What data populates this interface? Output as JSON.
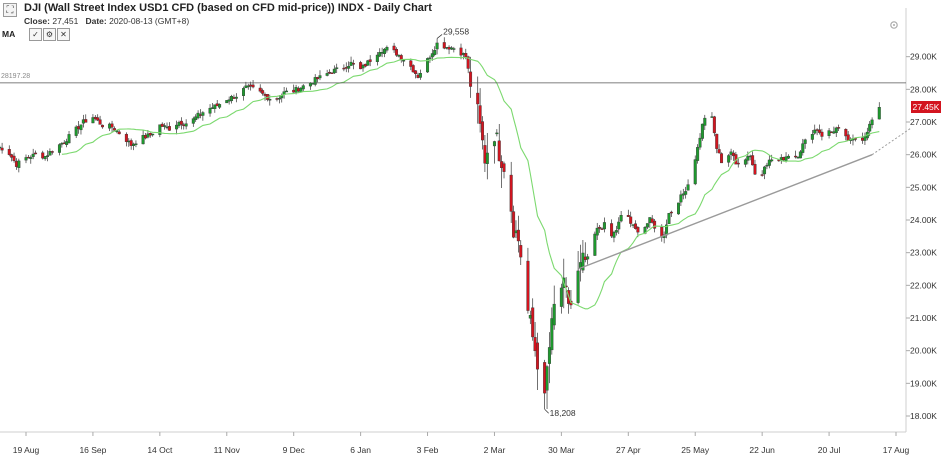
{
  "header": {
    "title": "DJI (Wall Street Index USD1 CFD (based on CFD mid-price)) INDX - Daily Chart",
    "close_label": "Close:",
    "close_value": "27,451",
    "date_label": "Date:",
    "date_value": "2020-08-13 (GMT+8)",
    "ma_label": "MA",
    "ma_buttons": [
      "✓",
      "⚙",
      "✕"
    ]
  },
  "colors": {
    "up": "#1e9a2e",
    "down": "#d3141f",
    "ma_line": "#7cd96f",
    "trendline": "#9a9a9a",
    "hline": "#555555",
    "price_tag": "#d3141f"
  },
  "chart_data": {
    "type": "candlestick",
    "instrument": "DJI",
    "ylim": [
      17500,
      30400
    ],
    "yticks": [
      "18.00K",
      "19.00K",
      "20.00K",
      "21.00K",
      "22.00K",
      "23.00K",
      "24.00K",
      "25.00K",
      "26.00K",
      "27.00K",
      "28.00K",
      "29.00K"
    ],
    "y_tick_values": [
      18000,
      19000,
      20000,
      21000,
      22000,
      23000,
      24000,
      25000,
      26000,
      27000,
      28000,
      29000
    ],
    "xticks": [
      "19 Aug",
      "16 Sep",
      "14 Oct",
      "11 Nov",
      "9 Dec",
      "6 Jan",
      "3 Feb",
      "2 Mar",
      "30 Mar",
      "27 Apr",
      "25 May",
      "22 Jun",
      "20 Jul",
      "17 Aug"
    ],
    "x_tick_days": [
      0,
      28,
      56,
      84,
      112,
      140,
      168,
      196,
      224,
      252,
      280,
      308,
      336,
      364
    ],
    "last_price_label": "27.45K",
    "last_price": 27451,
    "high_annotation": {
      "label": "29,558",
      "value": 29558,
      "day": 172
    },
    "low_annotation": {
      "label": "18,208",
      "value": 18208,
      "day": 217
    },
    "horizontal_line": {
      "label": "28197.28",
      "value": 28197.28
    },
    "trendline": {
      "start_day": 231,
      "start_value": 22500,
      "end_day": 354,
      "end_value": 26000,
      "extend_to_day": 370,
      "extend_value": 26800
    },
    "ma_visible": true,
    "grid": false,
    "keypoints": [
      [
        -12,
        26250
      ],
      [
        -8,
        26150
      ],
      [
        -4,
        25700
      ],
      [
        0,
        25900
      ],
      [
        4,
        26000
      ],
      [
        8,
        25950
      ],
      [
        12,
        26200
      ],
      [
        16,
        26400
      ],
      [
        20,
        26700
      ],
      [
        24,
        27000
      ],
      [
        28,
        27150
      ],
      [
        32,
        26900
      ],
      [
        36,
        26850
      ],
      [
        40,
        26600
      ],
      [
        44,
        26300
      ],
      [
        48,
        26500
      ],
      [
        52,
        26600
      ],
      [
        56,
        26900
      ],
      [
        60,
        26800
      ],
      [
        64,
        27000
      ],
      [
        68,
        26950
      ],
      [
        72,
        27200
      ],
      [
        76,
        27400
      ],
      [
        80,
        27500
      ],
      [
        84,
        27700
      ],
      [
        88,
        27800
      ],
      [
        92,
        28050
      ],
      [
        96,
        28000
      ],
      [
        100,
        27800
      ],
      [
        104,
        27650
      ],
      [
        108,
        27900
      ],
      [
        112,
        27950
      ],
      [
        116,
        28100
      ],
      [
        120,
        28250
      ],
      [
        124,
        28400
      ],
      [
        128,
        28550
      ],
      [
        132,
        28650
      ],
      [
        136,
        28800
      ],
      [
        140,
        28600
      ],
      [
        144,
        28900
      ],
      [
        148,
        29200
      ],
      [
        152,
        29250
      ],
      [
        156,
        29050
      ],
      [
        160,
        28800
      ],
      [
        164,
        28400
      ],
      [
        168,
        28900
      ],
      [
        172,
        29400
      ],
      [
        176,
        29300
      ],
      [
        180,
        29250
      ],
      [
        184,
        29000
      ],
      [
        186,
        28200
      ],
      [
        188,
        27700
      ],
      [
        190,
        26800
      ],
      [
        192,
        25900
      ],
      [
        194,
        26400
      ],
      [
        196,
        26700
      ],
      [
        198,
        26100
      ],
      [
        200,
        25700
      ],
      [
        202,
        25000
      ],
      [
        204,
        23800
      ],
      [
        206,
        23400
      ],
      [
        208,
        22500
      ],
      [
        210,
        21200
      ],
      [
        212,
        20400
      ],
      [
        214,
        19700
      ],
      [
        216,
        19200
      ],
      [
        217,
        18700
      ],
      [
        219,
        20100
      ],
      [
        221,
        21300
      ],
      [
        223,
        22000
      ],
      [
        225,
        21900
      ],
      [
        227,
        21500
      ],
      [
        229,
        21300
      ],
      [
        231,
        22300
      ],
      [
        233,
        22700
      ],
      [
        235,
        22800
      ],
      [
        237,
        23400
      ],
      [
        239,
        23700
      ],
      [
        241,
        23800
      ],
      [
        243,
        23900
      ],
      [
        245,
        23500
      ],
      [
        247,
        23700
      ],
      [
        249,
        24100
      ],
      [
        251,
        24300
      ],
      [
        253,
        23900
      ],
      [
        255,
        23700
      ],
      [
        257,
        23700
      ],
      [
        259,
        23800
      ],
      [
        261,
        24000
      ],
      [
        263,
        23800
      ],
      [
        265,
        23300
      ],
      [
        267,
        23600
      ],
      [
        269,
        24200
      ],
      [
        271,
        24300
      ],
      [
        273,
        24600
      ],
      [
        275,
        24800
      ],
      [
        277,
        25100
      ],
      [
        279,
        25600
      ],
      [
        281,
        26200
      ],
      [
        283,
        26900
      ],
      [
        285,
        27400
      ],
      [
        287,
        27100
      ],
      [
        289,
        26200
      ],
      [
        291,
        25800
      ],
      [
        293,
        25900
      ],
      [
        295,
        26100
      ],
      [
        297,
        25700
      ],
      [
        299,
        25900
      ],
      [
        301,
        25900
      ],
      [
        303,
        26000
      ],
      [
        305,
        25400
      ],
      [
        307,
        25100
      ],
      [
        309,
        25700
      ],
      [
        311,
        25800
      ],
      [
        313,
        25900
      ],
      [
        315,
        25800
      ],
      [
        317,
        25900
      ],
      [
        319,
        26000
      ],
      [
        321,
        25900
      ],
      [
        323,
        26000
      ],
      [
        325,
        26300
      ],
      [
        327,
        26500
      ],
      [
        329,
        26700
      ],
      [
        331,
        26800
      ],
      [
        333,
        26600
      ],
      [
        335,
        26700
      ],
      [
        337,
        26700
      ],
      [
        339,
        26800
      ],
      [
        341,
        26700
      ],
      [
        343,
        26500
      ],
      [
        345,
        26400
      ],
      [
        347,
        26500
      ],
      [
        349,
        26400
      ],
      [
        351,
        26600
      ],
      [
        353,
        26900
      ],
      [
        355,
        27200
      ],
      [
        357,
        27450
      ]
    ]
  }
}
